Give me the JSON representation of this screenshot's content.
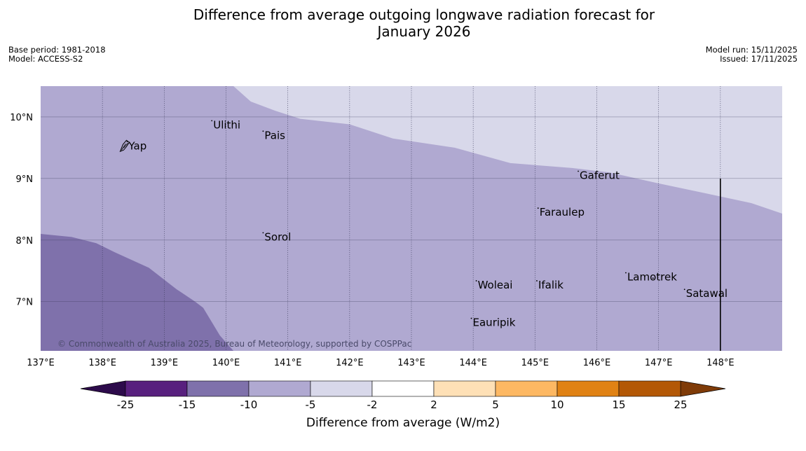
{
  "title": "Difference from average outgoing longwave radiation forecast for January 2026",
  "title_line1": "Difference from average outgoing longwave radiation forecast for",
  "title_line2": "January 2026",
  "meta_left": {
    "base_period": "Base period: 1981-2018",
    "model": "Model: ACCESS-S2"
  },
  "meta_right": {
    "model_run": "Model run: 15/11/2025",
    "issued": "Issued: 17/11/2025"
  },
  "copyright": "© Commonwealth of Australia 2025, Bureau of Meteorology, supported by COSPPac",
  "map": {
    "lon_range": [
      137,
      149
    ],
    "lat_range": [
      6.2,
      10.5
    ],
    "lon_ticks": [
      {
        "value": 137,
        "label": "137°E"
      },
      {
        "value": 138,
        "label": "138°E"
      },
      {
        "value": 139,
        "label": "139°E"
      },
      {
        "value": 140,
        "label": "140°E"
      },
      {
        "value": 141,
        "label": "141°E"
      },
      {
        "value": 142,
        "label": "142°E"
      },
      {
        "value": 143,
        "label": "143°E"
      },
      {
        "value": 144,
        "label": "144°E"
      },
      {
        "value": 145,
        "label": "145°E"
      },
      {
        "value": 146,
        "label": "146°E"
      },
      {
        "value": 147,
        "label": "147°E"
      },
      {
        "value": 148,
        "label": "148°E"
      }
    ],
    "lat_ticks": [
      {
        "value": 10,
        "label": "10°N"
      },
      {
        "value": 9,
        "label": "9°N"
      },
      {
        "value": 8,
        "label": "8°N"
      },
      {
        "value": 7,
        "label": "7°N"
      }
    ],
    "colors": {
      "lighter": "#d8d8ea",
      "mid": "#b0a9d1",
      "darker": "#7f71ab",
      "grid": "#3a3a5a",
      "boundary": "#000000"
    },
    "regions": {
      "upper_boundary": [
        [
          140.12,
          10.5
        ],
        [
          140.4,
          10.25
        ],
        [
          140.8,
          10.1
        ],
        [
          141.2,
          9.97
        ],
        [
          142.0,
          9.88
        ],
        [
          142.7,
          9.65
        ],
        [
          143.7,
          9.5
        ],
        [
          144.6,
          9.25
        ],
        [
          145.6,
          9.17
        ],
        [
          146.2,
          9.1
        ],
        [
          147.0,
          8.92
        ],
        [
          147.8,
          8.75
        ],
        [
          148.5,
          8.6
        ],
        [
          149.0,
          8.43
        ]
      ],
      "lower_boundary": [
        [
          137.0,
          8.1
        ],
        [
          137.5,
          8.05
        ],
        [
          137.9,
          7.95
        ],
        [
          138.2,
          7.8
        ],
        [
          138.75,
          7.55
        ],
        [
          139.2,
          7.2
        ],
        [
          139.5,
          7.0
        ],
        [
          139.63,
          6.9
        ],
        [
          139.9,
          6.45
        ],
        [
          140.12,
          6.2
        ]
      ]
    },
    "boundary_line": {
      "lon": 148.0,
      "lat_from": 6.2,
      "lat_to": 9.0
    },
    "places": [
      {
        "name": "Ulithi",
        "lon": 139.77,
        "lat": 9.87
      },
      {
        "name": "Pais",
        "lon": 140.6,
        "lat": 9.7
      },
      {
        "name": "Yap",
        "lon": 138.4,
        "lat": 9.53
      },
      {
        "name": "Gaferut",
        "lon": 145.7,
        "lat": 9.05
      },
      {
        "name": "Faraulep",
        "lon": 145.05,
        "lat": 8.45
      },
      {
        "name": "Sorol",
        "lon": 140.6,
        "lat": 8.05
      },
      {
        "name": "Lamotrek",
        "lon": 146.47,
        "lat": 7.4
      },
      {
        "name": "Woleai",
        "lon": 144.05,
        "lat": 7.27
      },
      {
        "name": "Ifalik",
        "lon": 145.03,
        "lat": 7.27
      },
      {
        "name": "Satawal",
        "lon": 147.42,
        "lat": 7.13
      },
      {
        "name": "Eauripik",
        "lon": 143.97,
        "lat": 6.66
      }
    ]
  },
  "legend": {
    "title": "Difference from average (W/m2)",
    "ticks": [
      "-25",
      "-15",
      "-10",
      "-5",
      "-2",
      "2",
      "5",
      "10",
      "15",
      "25"
    ],
    "colors": [
      "#58207e",
      "#7f71ab",
      "#b0a9d1",
      "#d8d8ea",
      "#ffffff",
      "#fee0b6",
      "#fdb863",
      "#e08214",
      "#b35806"
    ],
    "under_color": "#2d0b4b",
    "over_color": "#7f3b08"
  }
}
